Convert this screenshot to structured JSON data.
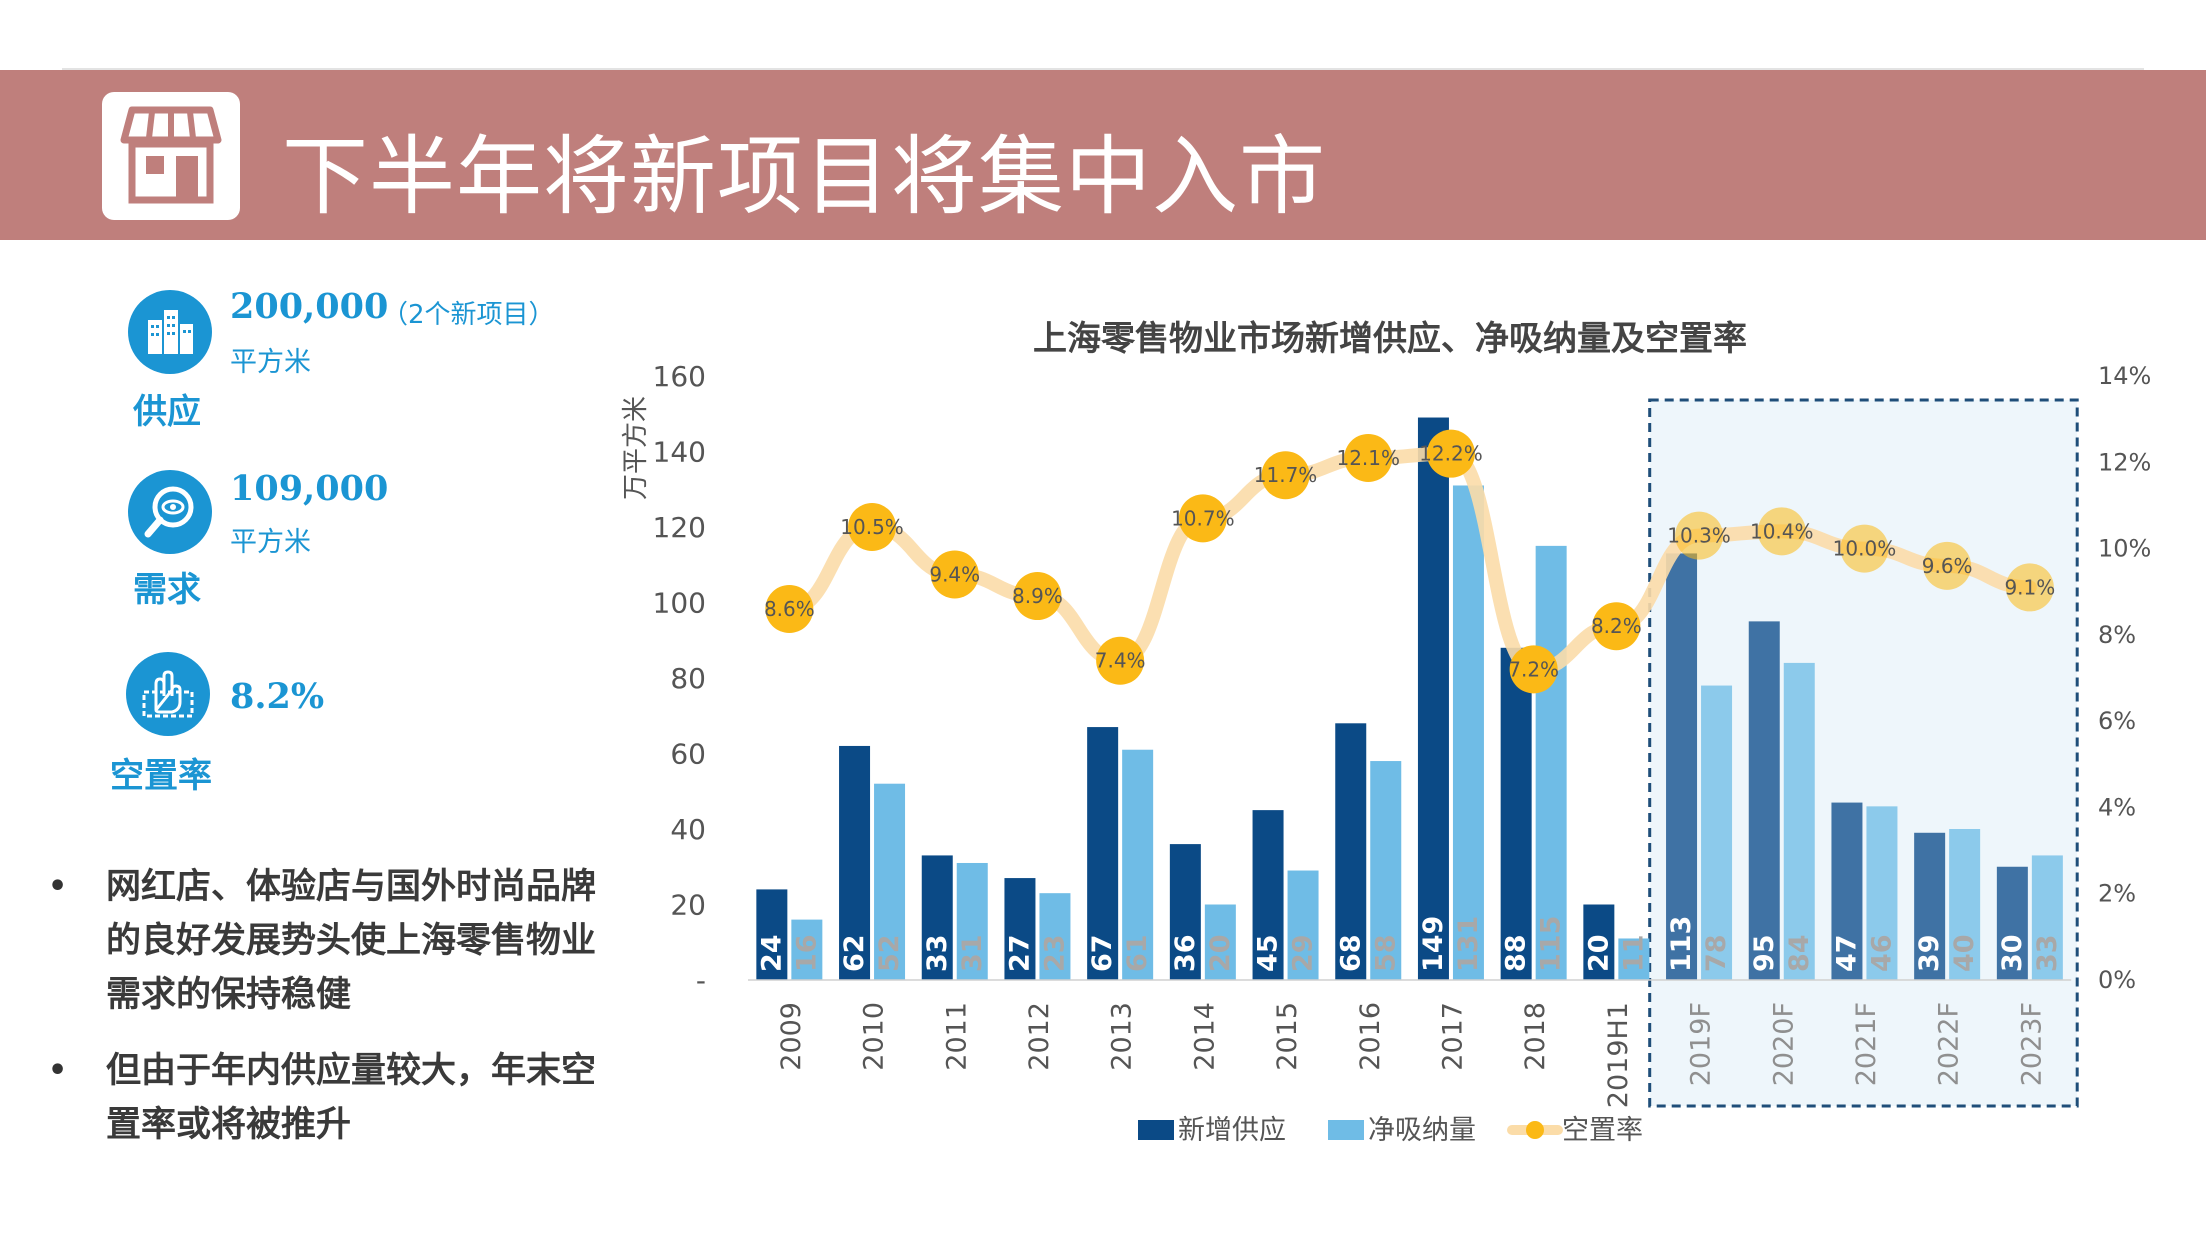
{
  "header": {
    "title": "下半年将新项目将集中入市",
    "icon": "storefront-icon"
  },
  "kpis": {
    "supply": {
      "label": "供应",
      "value": "200,000",
      "note": "（2个新项目）",
      "unit": "平方米",
      "icon": "buildings-icon"
    },
    "demand": {
      "label": "需求",
      "value": "109,000",
      "unit": "平方米",
      "icon": "magnifier-eye-icon"
    },
    "vacancy": {
      "label": "空置率",
      "value": "8.2%",
      "icon": "vacancy-hand-icon"
    }
  },
  "bullets": [
    "网红店、体验店与国外时尚品牌的良好发展势头使上海零售物业需求的保持稳健",
    "但由于年内供应量较大，年末空置率或将被推升"
  ],
  "colors": {
    "banner": "#bf7f7c",
    "kpi_blue": "#1b95d3",
    "supply_bar": "#0b4a86",
    "absorption_bar": "#6fbce6",
    "vacancy_line": "#fbdca8",
    "vacancy_marker": "#fbb916",
    "forecast_box_border": "#1f4e79",
    "forecast_box_fill": "#eef6fb"
  },
  "chart_data": {
    "type": "bar",
    "title": "上海零售物业市场新增供应、净吸纳量及空置率",
    "ylabel": "万平方米",
    "ylim": [
      0,
      160
    ],
    "y_ticks": [
      "-",
      "20",
      "40",
      "60",
      "80",
      "100",
      "120",
      "140",
      "160"
    ],
    "y2lim": [
      0,
      14
    ],
    "y2_ticks": [
      "0%",
      "2%",
      "4%",
      "6%",
      "8%",
      "10%",
      "12%",
      "14%"
    ],
    "categories": [
      "2009",
      "2010",
      "2011",
      "2012",
      "2013",
      "2014",
      "2015",
      "2016",
      "2017",
      "2018",
      "2019H1",
      "2019F",
      "2020F",
      "2021F",
      "2022F",
      "2023F"
    ],
    "series": [
      {
        "name": "新增供应",
        "type": "bar",
        "values": [
          24,
          62,
          33,
          27,
          67,
          36,
          45,
          68,
          149,
          88,
          20,
          113,
          95,
          47,
          39,
          30
        ]
      },
      {
        "name": "净吸纳量",
        "type": "bar",
        "values": [
          16,
          52,
          31,
          23,
          61,
          20,
          29,
          58,
          131,
          115,
          11,
          78,
          84,
          46,
          40,
          33
        ]
      },
      {
        "name": "空置率",
        "type": "line",
        "axis": "right",
        "values": [
          8.6,
          10.5,
          9.4,
          8.9,
          7.4,
          10.7,
          11.7,
          12.1,
          12.2,
          7.2,
          8.2,
          10.3,
          10.4,
          10.0,
          9.6,
          9.1
        ],
        "labels": [
          "8.6%",
          "10.5%",
          "9.4%",
          "8.9%",
          "7.4%",
          "10.7%",
          "11.7%",
          "12.1%",
          "12.2%",
          "7.2%",
          "8.2%",
          "10.3%",
          "10.4%",
          "10.0%",
          "9.6%",
          "9.1%"
        ]
      }
    ],
    "forecast_categories": [
      "2019F",
      "2020F",
      "2021F",
      "2022F",
      "2023F"
    ],
    "legend_position": "bottom",
    "grid": false
  }
}
